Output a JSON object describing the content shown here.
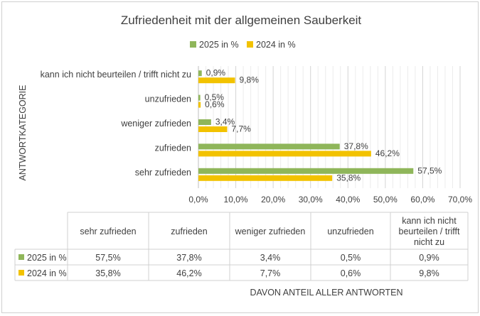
{
  "chart_data": {
    "type": "bar",
    "orientation": "horizontal",
    "title": "Zufriedenheit mit der allgemeinen Sauberkeit",
    "ylabel": "ANTWORTKATEGORIE",
    "xlabel": "DAVON ANTEIL ALLER ANTWORTEN",
    "categories": [
      "kann ich nicht beurteilen / trifft nicht zu",
      "unzufrieden",
      "weniger zufrieden",
      "zufrieden",
      "sehr zufrieden"
    ],
    "table_headers": [
      "sehr zufrieden",
      "zufrieden",
      "weniger zufrieden",
      "unzufrieden",
      "kann ich nicht beurteilen / trifft nicht zu"
    ],
    "xlim": [
      0,
      70
    ],
    "xticks": [
      "0,0%",
      "10,0%",
      "20,0%",
      "30,0%",
      "40,0%",
      "50,0%",
      "60,0%",
      "70,0%"
    ],
    "legend_position": "top",
    "grid": true,
    "series": [
      {
        "name": "2025 in %",
        "color": "#8fb65a",
        "values": [
          0.9,
          0.5,
          3.4,
          37.8,
          57.5
        ],
        "labels": [
          "0,9%",
          "0,5%",
          "3,4%",
          "37,8%",
          "57,5%"
        ]
      },
      {
        "name": "2024 in %",
        "color": "#f2c200",
        "values": [
          9.8,
          0.6,
          7.7,
          46.2,
          35.8
        ],
        "labels": [
          "9,8%",
          "0,6%",
          "7,7%",
          "46,2%",
          "35,8%"
        ]
      }
    ]
  }
}
